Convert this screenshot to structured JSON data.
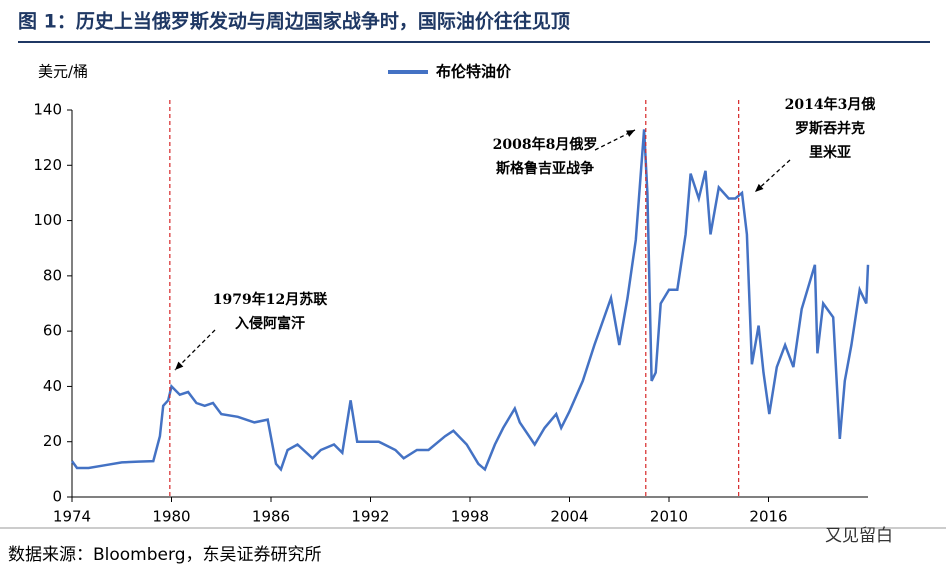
{
  "chart_data": {
    "type": "line",
    "title": "图 1：历史上当俄罗斯发动与周边国家战争时，国际油价往往见顶",
    "y_label": "美元/桶",
    "source": "数据来源：Bloomberg，东吴证券研究所",
    "watermark": "又见留白",
    "x": [
      1974,
      1974.3,
      1975,
      1976,
      1977,
      1978,
      1978.9,
      1979.3,
      1979.5,
      1979.8,
      1980,
      1980.5,
      1981,
      1981.5,
      1982,
      1982.5,
      1983,
      1984,
      1985,
      1985.8,
      1986.3,
      1986.6,
      1987,
      1987.6,
      1988.5,
      1989,
      1989.8,
      1990.3,
      1990.8,
      1991.2,
      1991.8,
      1992.5,
      1993.5,
      1994,
      1994.8,
      1995.5,
      1996.5,
      1997,
      1997.8,
      1998.5,
      1998.9,
      1999.5,
      2000,
      2000.7,
      2001,
      2001.9,
      2002.5,
      2003.2,
      2003.5,
      2004,
      2004.8,
      2005.5,
      2006.5,
      2007,
      2007.5,
      2008,
      2008.5,
      2008.7,
      2008.95,
      2009.2,
      2009.5,
      2010,
      2010.5,
      2011,
      2011.3,
      2011.8,
      2012.2,
      2012.5,
      2013,
      2013.6,
      2014,
      2014.4,
      2014.7,
      2015,
      2015.4,
      2015.7,
      2016.05,
      2016.5,
      2017,
      2017.5,
      2018,
      2018.8,
      2018.95,
      2019.3,
      2019.9,
      2020.3,
      2020.6,
      2021,
      2021.5,
      2021.9,
      2022
    ],
    "series": [
      {
        "name": "布伦特油价",
        "color": "#4472c4",
        "values": [
          13,
          10.5,
          10.5,
          11.5,
          12.5,
          12.8,
          13,
          22,
          33,
          35,
          40,
          37,
          38,
          34,
          33,
          34,
          30,
          29,
          27,
          28,
          12,
          10,
          17,
          19,
          14,
          17,
          19,
          16,
          35,
          20,
          20,
          20,
          17,
          14,
          17,
          17,
          22,
          24,
          19,
          12,
          10,
          19,
          25,
          32,
          27,
          19,
          25,
          30,
          25,
          31,
          42,
          55,
          72,
          55,
          72,
          93,
          133,
          110,
          42,
          45,
          70,
          75,
          75,
          95,
          117,
          108,
          118,
          95,
          112,
          108,
          108,
          110,
          95,
          48,
          62,
          45,
          30,
          47,
          55,
          47,
          68,
          84,
          52,
          70,
          65,
          21,
          42,
          55,
          75,
          70,
          84
        ]
      }
    ],
    "xlim": [
      1974,
      2022
    ],
    "xticks": [
      1974,
      1980,
      1986,
      1992,
      1998,
      2004,
      2010,
      2016
    ],
    "ylim": [
      0,
      140
    ],
    "yticks": [
      0,
      20,
      40,
      60,
      80,
      100,
      120,
      140
    ],
    "annotations": [
      {
        "x": 1979.9,
        "lines": [
          "1979年12月苏联",
          "入侵阿富汗"
        ]
      },
      {
        "x": 2008.6,
        "lines": [
          "2008年8月俄罗",
          "斯格鲁吉亚战争"
        ]
      },
      {
        "x": 2014.2,
        "lines": [
          "2014年3月俄",
          "罗斯吞并克",
          "里米亚"
        ]
      }
    ],
    "marker_color": "#d62728"
  }
}
